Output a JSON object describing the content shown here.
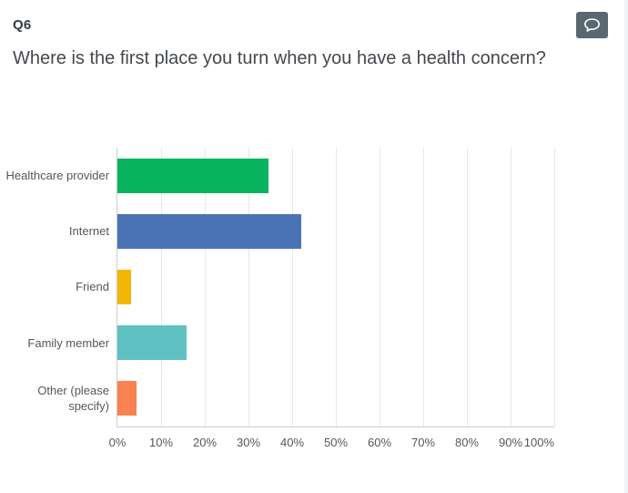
{
  "header": {
    "question_number": "Q6",
    "question_text": "Where is the first place you turn when you have a health concern?"
  },
  "toolbar": {
    "comment_icon": "speech-bubble-icon"
  },
  "colors": {
    "card_background": "#ffffff",
    "page_background": "#f0f1f2",
    "comment_button_background": "#5a6770",
    "question_text": "#43484d",
    "axis_line": "#c9cdd0",
    "gridline": "#e8e8e8",
    "label_text": "#54585a"
  },
  "chart_data": {
    "type": "bar",
    "orientation": "horizontal",
    "title": "Where is the first place you turn when you have a health concern?",
    "categories": [
      "Healthcare provider",
      "Internet",
      "Friend",
      "Family member",
      "Other (please specify)"
    ],
    "values": [
      34.5,
      42,
      3.1,
      15.9,
      4.3
    ],
    "unit": "%",
    "bar_colors": [
      "#0ab45f",
      "#4a73b5",
      "#f4b605",
      "#5fc1c2",
      "#fa8150"
    ],
    "x_ticks": [
      "0%",
      "10%",
      "20%",
      "30%",
      "40%",
      "50%",
      "60%",
      "70%",
      "80%",
      "90%",
      "100%"
    ],
    "xlim": [
      0,
      100
    ],
    "grid": true,
    "legend": false,
    "xlabel": "",
    "ylabel": ""
  }
}
